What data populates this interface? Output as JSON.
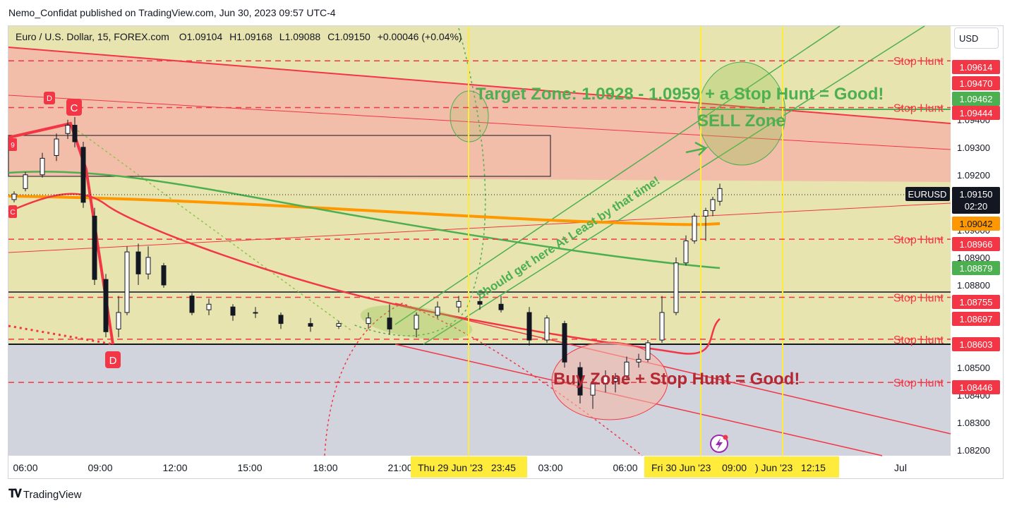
{
  "publisher_line": "Nemo_Confidat published on TradingView.com, Jun 30, 2023 09:57 UTC-4",
  "footer_brand": "TradingView",
  "currency_button": "USD",
  "legend": {
    "symbol": "Euro / U.S. Dollar, 15, FOREX.com",
    "o_label": "O",
    "o": "1.09104",
    "h_label": "H",
    "h": "1.09168",
    "l_label": "L",
    "l": "1.09088",
    "c_label": "C",
    "c": "1.09150",
    "change": "+0.00046 (+0.04%)"
  },
  "annotations": {
    "target_zone": "Target Zone: 1.0928 - 1.0959 + a Stop Hunt = Good!",
    "sell_zone": "SELL Zone",
    "should_get_here": "Should get here At Least by that time!",
    "buy_zone": "Buy Zone + Stop Hunt = Good!",
    "stop_hunt": "Stop Hunt",
    "pattern_c": "C",
    "pattern_d": "D",
    "pattern_edge_c": "C",
    "pattern_edge_9": "9"
  },
  "price_tags": {
    "symbol_tag": "EURUSD",
    "current": "1.09150",
    "countdown": "02:20",
    "orange_ma": "1.09042",
    "green_ma": "1.08879",
    "red_levels": [
      "1.09614",
      "1.09470",
      "1.09444",
      "1.08966",
      "1.08755",
      "1.08697",
      "1.08603",
      "1.08446"
    ],
    "green_level": "1.09462"
  },
  "time_markers": [
    "Thu 29 Jun '23   23:45",
    "Fri 30 Jun '23",
    "09:00",
    ") Jun '23   12:15"
  ],
  "colors": {
    "up_candle": "#ffffff",
    "down_candle": "#131722",
    "stop_hunt": "#f23645",
    "ma_orange": "#ff9800",
    "ma_green": "#4caf50",
    "ma_red": "#f23645",
    "zone_yellow": "#e8e4b0",
    "zone_red": "#f5b7a8",
    "zone_grey": "#d1d4dc",
    "marker_yellow": "#ffeb3b"
  },
  "chart_data": {
    "type": "candlestick",
    "title": "",
    "xlabel": "",
    "ylabel": "",
    "interval": "15",
    "ylim": [
      1.0818,
      1.0974
    ],
    "y_ticks": [
      "1.09400",
      "1.09300",
      "1.09200",
      "1.09000",
      "1.08900",
      "1.08800",
      "1.08500",
      "1.08400",
      "1.08300",
      "1.08200"
    ],
    "x_ticks": [
      "06:00",
      "09:00",
      "12:00",
      "15:00",
      "18:00",
      "21:00",
      "03:00",
      "06:00",
      "Jul"
    ],
    "stop_hunt_levels": [
      1.09614,
      1.09444,
      1.08966,
      1.08755,
      1.08603,
      1.08446
    ],
    "candles": [
      {
        "t": "06:00",
        "o": 1.0911,
        "h": 1.0914,
        "l": 1.091,
        "c": 1.0913
      },
      {
        "t": "06:45",
        "o": 1.0915,
        "h": 1.0921,
        "l": 1.0914,
        "c": 1.092
      },
      {
        "t": "07:15",
        "o": 1.092,
        "h": 1.0928,
        "l": 1.0919,
        "c": 1.0926
      },
      {
        "t": "07:45",
        "o": 1.0927,
        "h": 1.0935,
        "l": 1.0925,
        "c": 1.0933
      },
      {
        "t": "08:15",
        "o": 1.0935,
        "h": 1.094,
        "l": 1.0933,
        "c": 1.0938
      },
      {
        "t": "08:30",
        "o": 1.0938,
        "h": 1.0941,
        "l": 1.093,
        "c": 1.0932
      },
      {
        "t": "08:45",
        "o": 1.093,
        "h": 1.0932,
        "l": 1.0908,
        "c": 1.091
      },
      {
        "t": "09:00",
        "o": 1.0905,
        "h": 1.0908,
        "l": 1.088,
        "c": 1.0882
      },
      {
        "t": "09:30",
        "o": 1.0882,
        "h": 1.0884,
        "l": 1.0861,
        "c": 1.0863
      },
      {
        "t": "10:00",
        "o": 1.0864,
        "h": 1.0876,
        "l": 1.0861,
        "c": 1.087
      },
      {
        "t": "10:30",
        "o": 1.087,
        "h": 1.0894,
        "l": 1.0869,
        "c": 1.0892
      },
      {
        "t": "11:00",
        "o": 1.0892,
        "h": 1.0895,
        "l": 1.088,
        "c": 1.0884
      },
      {
        "t": "11:30",
        "o": 1.0884,
        "h": 1.0894,
        "l": 1.0882,
        "c": 1.089
      },
      {
        "t": "12:00",
        "o": 1.0887,
        "h": 1.0888,
        "l": 1.0879,
        "c": 1.088
      },
      {
        "t": "13:00",
        "o": 1.0876,
        "h": 1.0877,
        "l": 1.0869,
        "c": 1.087
      },
      {
        "t": "14:00",
        "o": 1.0871,
        "h": 1.0875,
        "l": 1.0869,
        "c": 1.0873
      },
      {
        "t": "15:00",
        "o": 1.0872,
        "h": 1.0873,
        "l": 1.0867,
        "c": 1.0869
      },
      {
        "t": "16:00",
        "o": 1.087,
        "h": 1.0872,
        "l": 1.0868,
        "c": 1.087
      },
      {
        "t": "17:00",
        "o": 1.0869,
        "h": 1.087,
        "l": 1.0864,
        "c": 1.0866
      },
      {
        "t": "18:00",
        "o": 1.0866,
        "h": 1.0868,
        "l": 1.0863,
        "c": 1.0865
      },
      {
        "t": "19:00",
        "o": 1.0865,
        "h": 1.0867,
        "l": 1.0864,
        "c": 1.0866
      },
      {
        "t": "20:00",
        "o": 1.0866,
        "h": 1.087,
        "l": 1.0864,
        "c": 1.0868
      },
      {
        "t": "21:00",
        "o": 1.0868,
        "h": 1.0873,
        "l": 1.0862,
        "c": 1.0864
      },
      {
        "t": "22:00",
        "o": 1.0864,
        "h": 1.087,
        "l": 1.0861,
        "c": 1.0869
      },
      {
        "t": "23:00",
        "o": 1.0869,
        "h": 1.0874,
        "l": 1.0868,
        "c": 1.0872
      },
      {
        "t": "00:00",
        "o": 1.0872,
        "h": 1.0876,
        "l": 1.087,
        "c": 1.0874
      },
      {
        "t": "01:00",
        "o": 1.0874,
        "h": 1.0877,
        "l": 1.0871,
        "c": 1.0873
      },
      {
        "t": "02:00",
        "o": 1.0873,
        "h": 1.0876,
        "l": 1.087,
        "c": 1.0871
      },
      {
        "t": "03:00",
        "o": 1.087,
        "h": 1.0872,
        "l": 1.0858,
        "c": 1.086
      },
      {
        "t": "04:00",
        "o": 1.086,
        "h": 1.0869,
        "l": 1.0859,
        "c": 1.0868
      },
      {
        "t": "04:30",
        "o": 1.0866,
        "h": 1.0867,
        "l": 1.085,
        "c": 1.0852
      },
      {
        "t": "05:00",
        "o": 1.085,
        "h": 1.0852,
        "l": 1.0837,
        "c": 1.084
      },
      {
        "t": "05:30",
        "o": 1.084,
        "h": 1.0846,
        "l": 1.0835,
        "c": 1.0844
      },
      {
        "t": "06:00",
        "o": 1.0844,
        "h": 1.0849,
        "l": 1.0841,
        "c": 1.0847
      },
      {
        "t": "06:30",
        "o": 1.0845,
        "h": 1.0848,
        "l": 1.0841,
        "c": 1.0846
      },
      {
        "t": "07:00",
        "o": 1.0847,
        "h": 1.0854,
        "l": 1.0846,
        "c": 1.0852
      },
      {
        "t": "07:30",
        "o": 1.0852,
        "h": 1.0855,
        "l": 1.085,
        "c": 1.0853
      },
      {
        "t": "08:00",
        "o": 1.0853,
        "h": 1.086,
        "l": 1.0852,
        "c": 1.0859
      },
      {
        "t": "08:15",
        "o": 1.086,
        "h": 1.0876,
        "l": 1.0859,
        "c": 1.087
      },
      {
        "t": "08:30",
        "o": 1.087,
        "h": 1.089,
        "l": 1.0869,
        "c": 1.0888
      },
      {
        "t": "08:45",
        "o": 1.0888,
        "h": 1.0898,
        "l": 1.0887,
        "c": 1.0896
      },
      {
        "t": "09:00",
        "o": 1.0896,
        "h": 1.0906,
        "l": 1.0895,
        "c": 1.0905
      },
      {
        "t": "09:15",
        "o": 1.0905,
        "h": 1.0908,
        "l": 1.0896,
        "c": 1.0907
      },
      {
        "t": "09:30",
        "o": 1.0907,
        "h": 1.0912,
        "l": 1.0905,
        "c": 1.0911
      },
      {
        "t": "09:45",
        "o": 1.09104,
        "h": 1.09168,
        "l": 1.09088,
        "c": 1.0915
      }
    ]
  }
}
